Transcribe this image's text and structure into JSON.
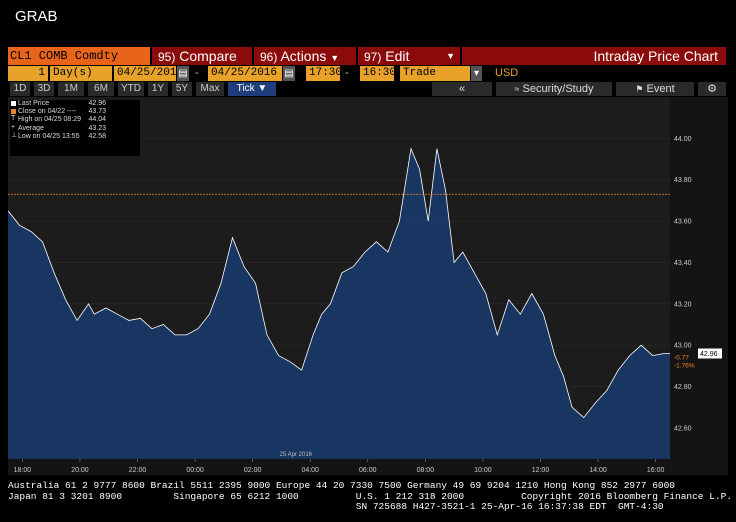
{
  "app": {
    "title": "GRAB"
  },
  "toolbar": {
    "ticker": "CL1 COMB Comdty",
    "compare_num": "95)",
    "compare_label": "Compare",
    "actions_num": "96)",
    "actions_label": "Actions",
    "edit_num": "97)",
    "edit_label": "Edit",
    "chart_title": "Intraday Price Chart"
  },
  "params": {
    "period_num": "1",
    "period_unit": "Day(s)",
    "start_date": "04/25/2016",
    "end_date": "04/25/2016",
    "start_time": "17:30",
    "end_time": "16:30",
    "field": "Trade",
    "currency": "USD"
  },
  "tabs": [
    "1D",
    "3D",
    "1M",
    "6M",
    "YTD",
    "1Y",
    "5Y",
    "Max",
    "Tick"
  ],
  "buttons": {
    "back": "«",
    "study": "Security/Study",
    "event": "Event"
  },
  "legend": [
    {
      "label": "Last Price",
      "value": "42.96",
      "color": "#ffffff"
    },
    {
      "label": "Close on 04/22 ----",
      "value": "43.73",
      "color": "#e8862a"
    },
    {
      "label": "High on 04/25 08:29",
      "value": "44.04",
      "color": ""
    },
    {
      "label": "Average",
      "value": "43.23",
      "color": ""
    },
    {
      "label": "Low on 04/25 13:55",
      "value": "42.58",
      "color": ""
    }
  ],
  "annotations": {
    "change": "-0.77",
    "change_pct": "-1.76%",
    "last_price": "42.96"
  },
  "chart_data": {
    "type": "area",
    "ylim": [
      42.45,
      44.2
    ],
    "y_ticks": [
      42.6,
      42.8,
      43.0,
      43.2,
      43.4,
      43.6,
      43.8,
      44.0
    ],
    "y_tick_labels": [
      "42.60",
      "42.80",
      "43.00",
      "43.20",
      "43.40",
      "43.60",
      "43.80",
      "44.00"
    ],
    "x_tick_labels": [
      "18:00",
      "20:00",
      "22:00",
      "00:00",
      "02:00",
      "04:00",
      "06:00",
      "08:00",
      "10:00",
      "12:00",
      "14:00",
      "16:00"
    ],
    "x_tick_hours": [
      0.5,
      2.5,
      4.5,
      6.5,
      8.5,
      10.5,
      12.5,
      14.5,
      16.5,
      18.5,
      20.5,
      22.5
    ],
    "date_label": "25 Apr 2016",
    "x_range_hours": [
      0,
      23
    ],
    "prev_close": 43.73,
    "series": [
      {
        "x": [
          0,
          0.4,
          0.8,
          1.2,
          1.6,
          2.0,
          2.4,
          2.8,
          3.0,
          3.4,
          3.8,
          4.2,
          4.6,
          5.0,
          5.4,
          5.8,
          6.2,
          6.6,
          7.0,
          7.4,
          7.8,
          8.2,
          8.6,
          9.0,
          9.4,
          9.8,
          10.2,
          10.6,
          10.9,
          11.2,
          11.6,
          12.0,
          12.4,
          12.8,
          13.2,
          13.6,
          14.0,
          14.3,
          14.6,
          14.9,
          15.2,
          15.5,
          15.8,
          16.2,
          16.6,
          17.0,
          17.4,
          17.8,
          18.2,
          18.6,
          19.0,
          19.3,
          19.6,
          20.0,
          20.4,
          20.8,
          21.2,
          21.6,
          22.0,
          22.4,
          22.8,
          23.0
        ],
        "y": [
          43.65,
          43.58,
          43.55,
          43.5,
          43.35,
          43.22,
          43.12,
          43.2,
          43.15,
          43.18,
          43.15,
          43.12,
          43.13,
          43.08,
          43.1,
          43.05,
          43.05,
          43.08,
          43.15,
          43.3,
          43.52,
          43.38,
          43.3,
          43.05,
          42.95,
          42.92,
          42.88,
          43.05,
          43.15,
          43.2,
          43.35,
          43.38,
          43.45,
          43.5,
          43.45,
          43.6,
          43.95,
          43.85,
          43.6,
          43.95,
          43.75,
          43.4,
          43.45,
          43.35,
          43.25,
          43.05,
          43.22,
          43.15,
          43.25,
          43.15,
          42.95,
          42.85,
          42.7,
          42.65,
          42.72,
          42.78,
          42.88,
          42.95,
          43.0,
          42.95,
          42.96,
          42.96
        ]
      }
    ]
  }
}
